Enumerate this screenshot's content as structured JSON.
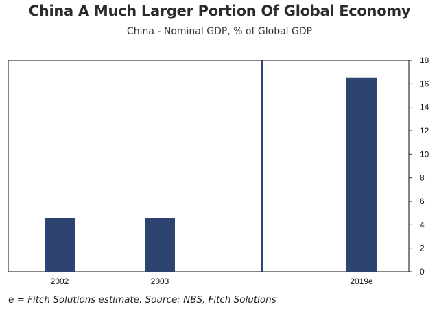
{
  "title": "China A Much Larger Portion Of Global Economy",
  "subtitle": "China - Nominal GDP, % of Global GDP",
  "footnote": "e = Fitch Solutions estimate. Source: NBS, Fitch Solutions",
  "colors": {
    "bar": "#2e4470",
    "divider": "#2e4470",
    "frame": "#333333"
  },
  "chart_data": {
    "type": "bar",
    "title": "China A Much Larger Portion Of Global Economy",
    "subtitle": "China - Nominal GDP, % of Global GDP",
    "categories": [
      "2002",
      "2003",
      "2019e"
    ],
    "values": [
      4.6,
      4.6,
      16.5
    ],
    "xlabel": "",
    "ylabel": "",
    "ylim": [
      0,
      18
    ],
    "yticks": [
      0,
      2,
      4,
      6,
      8,
      10,
      12,
      14,
      16,
      18
    ],
    "y_axis_side": "right",
    "grid": false,
    "legend": "none",
    "axis_break_between": [
      "2003",
      "2019e"
    ]
  }
}
